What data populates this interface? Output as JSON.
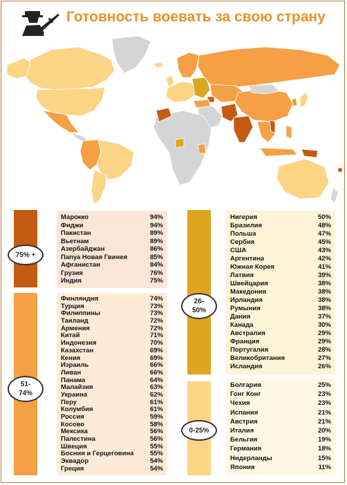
{
  "title": "Готовность воевать за свою страну",
  "colors": {
    "tier1": "#c55a11",
    "tier2": "#f5a044",
    "tier3": "#dca61e",
    "tier4": "#fcd486",
    "no_data": "#d5d5d5",
    "accent": "#e8922a"
  },
  "icon": "soldier-with-rifle-icon",
  "groups": [
    {
      "label": "75% +",
      "color": "#c55a11",
      "items": [
        {
          "country": "Марокко",
          "value": "94%"
        },
        {
          "country": "Фиджи",
          "value": "94%"
        },
        {
          "country": "Пакистан",
          "value": "89%"
        },
        {
          "country": "Вьетнам",
          "value": "89%"
        },
        {
          "country": "Азербайджан",
          "value": "86%"
        },
        {
          "country": "Папуа Новая Гвинея",
          "value": "85%"
        },
        {
          "country": "Афганистан",
          "value": "84%"
        },
        {
          "country": "Грузия",
          "value": "76%"
        },
        {
          "country": "Индия",
          "value": "75%"
        }
      ]
    },
    {
      "label": "51- 74%",
      "color": "#f5a044",
      "items": [
        {
          "country": "Финляндия",
          "value": "74%"
        },
        {
          "country": "Турция",
          "value": "73%"
        },
        {
          "country": "Филиппины",
          "value": "73%"
        },
        {
          "country": "Таиланд",
          "value": "72%"
        },
        {
          "country": "Армения",
          "value": "72%"
        },
        {
          "country": "Китай",
          "value": "71%"
        },
        {
          "country": "Индонезия",
          "value": "70%"
        },
        {
          "country": "Казахстан",
          "value": "69%"
        },
        {
          "country": "Кения",
          "value": "69%"
        },
        {
          "country": "Израиль",
          "value": "66%"
        },
        {
          "country": "Ливан",
          "value": "66%"
        },
        {
          "country": "Панама",
          "value": "64%"
        },
        {
          "country": "Малайзия",
          "value": "63%"
        },
        {
          "country": "Украина",
          "value": "62%"
        },
        {
          "country": "Перу",
          "value": "61%"
        },
        {
          "country": "Колумбия",
          "value": "61%"
        },
        {
          "country": "Россия",
          "value": "59%"
        },
        {
          "country": "Косово",
          "value": "58%"
        },
        {
          "country": "Мексика",
          "value": "56%"
        },
        {
          "country": "Палестина",
          "value": "56%"
        },
        {
          "country": "Швеция",
          "value": "55%"
        },
        {
          "country": "Босния и Герцеговина",
          "value": "55%"
        },
        {
          "country": "Эквадор",
          "value": "54%"
        },
        {
          "country": "Греция",
          "value": "54%"
        }
      ]
    },
    {
      "label": "26- 50%",
      "color": "#dca61e",
      "items": [
        {
          "country": "Нигерия",
          "value": "50%"
        },
        {
          "country": "Бразилия",
          "value": "48%"
        },
        {
          "country": "Польша",
          "value": "47%"
        },
        {
          "country": "Сербия",
          "value": "45%"
        },
        {
          "country": "США",
          "value": "43%"
        },
        {
          "country": "Аргентина",
          "value": "42%"
        },
        {
          "country": "Южная Корея",
          "value": "41%"
        },
        {
          "country": "Латвия",
          "value": "39%"
        },
        {
          "country": "Швейцария",
          "value": "38%"
        },
        {
          "country": "Македония",
          "value": "38%"
        },
        {
          "country": "Ирландия",
          "value": "38%"
        },
        {
          "country": "Румыния",
          "value": "38%"
        },
        {
          "country": "Дания",
          "value": "37%"
        },
        {
          "country": "Канада",
          "value": "30%"
        },
        {
          "country": "Австралия",
          "value": "29%"
        },
        {
          "country": "Франция",
          "value": "29%"
        },
        {
          "country": "Португалия",
          "value": "28%"
        },
        {
          "country": "Великобритания",
          "value": "27%"
        },
        {
          "country": "Исландия",
          "value": "26%"
        }
      ]
    },
    {
      "label": "0-25%",
      "color": "#fcd486",
      "items": [
        {
          "country": "Болгария",
          "value": "25%"
        },
        {
          "country": "Гонг Конг",
          "value": "23%"
        },
        {
          "country": "Чехия",
          "value": "23%"
        },
        {
          "country": "Испания",
          "value": "21%"
        },
        {
          "country": "Австрия",
          "value": "21%"
        },
        {
          "country": "Италия",
          "value": "20%"
        },
        {
          "country": "Бельгия",
          "value": "19%"
        },
        {
          "country": "Германия",
          "value": "18%"
        },
        {
          "country": "Нидерланды",
          "value": "15%"
        },
        {
          "country": "Япония",
          "value": "11%"
        }
      ]
    }
  ]
}
